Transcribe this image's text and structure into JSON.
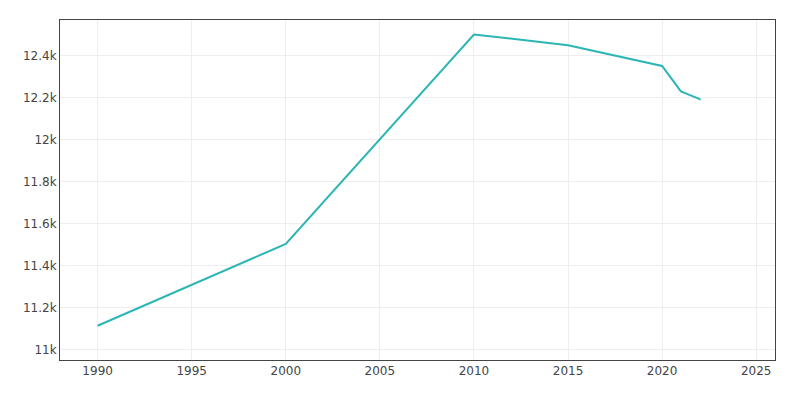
{
  "chart_data": {
    "type": "line",
    "x": [
      1990,
      2000,
      2010,
      2015,
      2020,
      2021,
      2022,
      2022
    ],
    "values": [
      11113,
      11503,
      12501,
      12450,
      12351,
      12230,
      12193,
      12196
    ],
    "color": "#2cb5b5",
    "xlim": [
      1988,
      2026
    ],
    "xticks": [
      1990,
      1995,
      2000,
      2005,
      2010,
      2015,
      2020,
      2025
    ],
    "ylim": [
      10950,
      12570
    ],
    "yticks": [
      {
        "value": 11000,
        "label": "11k"
      },
      {
        "value": 11200,
        "label": "11.2k"
      },
      {
        "value": 11400,
        "label": "11.4k"
      },
      {
        "value": 11600,
        "label": "11.6k"
      },
      {
        "value": 11800,
        "label": "11.8k"
      },
      {
        "value": 12000,
        "label": "12k"
      },
      {
        "value": 12200,
        "label": "12.2k"
      },
      {
        "value": 12400,
        "label": "12.4k"
      }
    ],
    "grid": true
  }
}
